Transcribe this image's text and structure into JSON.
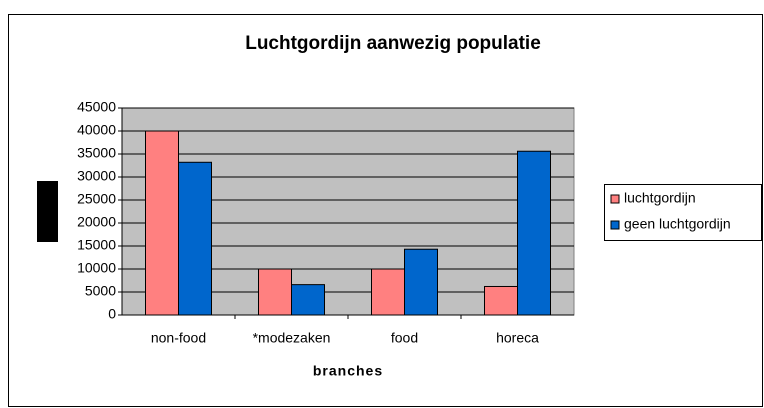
{
  "chart_data": {
    "type": "bar",
    "title": "Luchtgordijn aanwezig populatie",
    "xlabel": "branches",
    "categories": [
      "non-food",
      "*modezaken",
      "food",
      "horeca"
    ],
    "series": [
      {
        "name": "luchtgordijn",
        "color": "#ff8080",
        "values": [
          40000,
          10000,
          10000,
          6200
        ]
      },
      {
        "name": "geen luchtgordijn",
        "color": "#0066cc",
        "values": [
          33200,
          6600,
          14300,
          35600
        ]
      }
    ],
    "ylim": [
      0,
      45000
    ],
    "yticks": [
      0,
      5000,
      10000,
      15000,
      20000,
      25000,
      30000,
      35000,
      40000,
      45000
    ],
    "grid": true,
    "legend": "right"
  }
}
